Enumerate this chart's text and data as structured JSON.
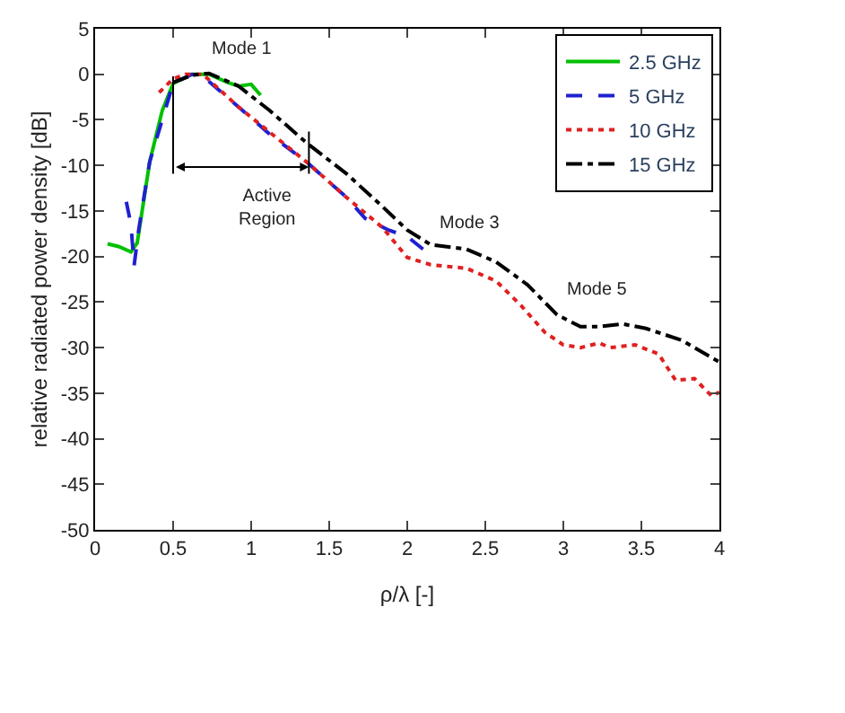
{
  "chart_data": {
    "type": "line",
    "xlabel": "ρ/λ [-]",
    "ylabel": "relative radiated power density [dB]",
    "xlim": [
      0,
      4
    ],
    "xticks": [
      0,
      0.5,
      1,
      1.5,
      2,
      2.5,
      3,
      3.5,
      4
    ],
    "ylim": [
      -50,
      5
    ],
    "yticks": [
      -50,
      -45,
      -40,
      -35,
      -30,
      -25,
      -20,
      -15,
      -10,
      -5,
      0,
      5
    ],
    "legend": "top right",
    "series": [
      {
        "name": "2.5 GHz",
        "color": "#00c000",
        "line_style": "solid",
        "x": [
          0.08,
          0.15,
          0.23,
          0.27,
          0.35,
          0.43,
          0.5,
          0.62,
          0.73,
          0.85,
          0.92,
          1.0,
          1.06
        ],
        "values": [
          -18.6,
          -18.9,
          -19.5,
          -18.5,
          -9.6,
          -4,
          -1,
          0,
          0,
          -0.9,
          -1.3,
          -1.1,
          -2.3
        ]
      },
      {
        "name": "5 GHz",
        "color": "#2020d0",
        "line_style": "dashed",
        "x": [
          0.2,
          0.23,
          0.25,
          0.28,
          0.35,
          0.5,
          0.62,
          0.69,
          0.92,
          1.12,
          1.36,
          1.61,
          1.73,
          1.88,
          2.0,
          2.13
        ],
        "values": [
          -14,
          -16.5,
          -21,
          -17,
          -9.6,
          -1,
          0,
          -0.2,
          -3.6,
          -6.6,
          -9.7,
          -13.5,
          -15.8,
          -17.1,
          -17.8,
          -19.6
        ]
      },
      {
        "name": "10 GHz",
        "color": "#e02020",
        "line_style": "dotted",
        "x": [
          0.41,
          0.5,
          0.58,
          0.69,
          0.92,
          1.36,
          1.61,
          1.84,
          2.0,
          2.15,
          2.38,
          2.57,
          2.73,
          2.88,
          3.0,
          3.11,
          3.23,
          3.3,
          3.46,
          3.61,
          3.72,
          3.84,
          3.95,
          4.0
        ],
        "values": [
          -2,
          -0.5,
          0,
          0,
          -3.6,
          -9.7,
          -13.5,
          -16.8,
          -20.1,
          -20.9,
          -21.3,
          -22.7,
          -25.4,
          -28.3,
          -29.7,
          -30,
          -29.5,
          -30,
          -29.7,
          -30.7,
          -33.6,
          -33.4,
          -35.3,
          -34.9
        ]
      },
      {
        "name": "15 GHz",
        "color": "#000000",
        "line_style": "dashdot",
        "x": [
          0.5,
          0.62,
          0.73,
          0.92,
          1.12,
          1.36,
          1.61,
          1.84,
          2.0,
          2.15,
          2.38,
          2.57,
          2.77,
          2.96,
          3.11,
          3.23,
          3.38,
          3.53,
          3.76,
          4.0
        ],
        "values": [
          -0.9,
          -0.1,
          0.1,
          -1.3,
          -4,
          -7.6,
          -10.9,
          -14.5,
          -17.1,
          -18.7,
          -19.2,
          -20.6,
          -23.1,
          -26.4,
          -27.7,
          -27.7,
          -27.4,
          -27.9,
          -29.2,
          -31.6
        ]
      }
    ],
    "annotations": [
      "Mode 1",
      "Active\nRegion",
      "Mode 3",
      "Mode 5"
    ]
  }
}
